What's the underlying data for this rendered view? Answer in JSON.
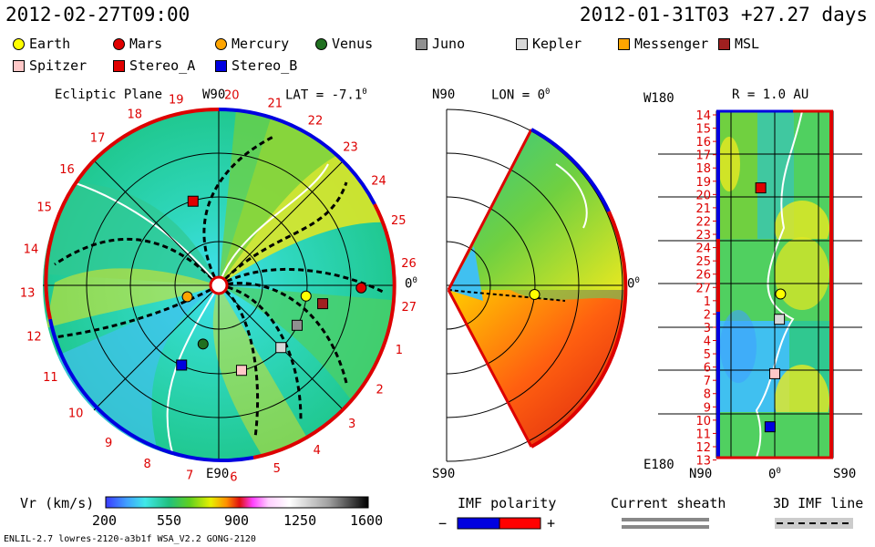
{
  "header": {
    "left_time": "2012-02-27T09:00",
    "right_time": "2012-01-31T03 +27.27 days"
  },
  "legend": [
    {
      "name": "Earth",
      "shape": "circle",
      "color": "#ffff00"
    },
    {
      "name": "Mars",
      "shape": "circle",
      "color": "#e00000"
    },
    {
      "name": "Mercury",
      "shape": "circle",
      "color": "#ffa500"
    },
    {
      "name": "Venus",
      "shape": "circle",
      "color": "#207020"
    },
    {
      "name": "Juno",
      "shape": "square",
      "color": "#909090"
    },
    {
      "name": "Kepler",
      "shape": "square",
      "color": "#d8d8d8"
    },
    {
      "name": "Messenger",
      "shape": "square",
      "color": "#ffa500"
    },
    {
      "name": "MSL",
      "shape": "square",
      "color": "#a02020"
    },
    {
      "name": "Spitzer",
      "shape": "square",
      "color": "#ffc8c8"
    },
    {
      "name": "Stereo_A",
      "shape": "square",
      "color": "#e00000"
    },
    {
      "name": "Stereo_B",
      "shape": "square",
      "color": "#0000e0"
    }
  ],
  "chart_data": [
    {
      "type": "heatmap",
      "title": "Ecliptic Plane",
      "subtitle": "LAT = -7.1",
      "degree_mark": "0",
      "top_label": "W90",
      "bottom_label": "E90",
      "right_label": "0",
      "carrington_ticks": [
        "20",
        "21",
        "22",
        "23",
        "24",
        "25",
        "26",
        "27",
        "1",
        "2",
        "3",
        "4",
        "5",
        "6",
        "7",
        "8",
        "9",
        "10",
        "11",
        "12",
        "13",
        "14",
        "15",
        "16",
        "17",
        "18",
        "19"
      ],
      "objects": [
        {
          "name": "Earth",
          "r_au": 1.0,
          "angle_deg": -7
        },
        {
          "name": "Mars",
          "r_au": 1.62,
          "angle_deg": -1
        },
        {
          "name": "Mercury",
          "r_au": 0.38,
          "angle_deg": -160
        },
        {
          "name": "Venus",
          "r_au": 0.69,
          "angle_deg": -105
        },
        {
          "name": "Juno",
          "r_au": 1.0,
          "angle_deg": -27
        },
        {
          "name": "Kepler",
          "r_au": 1.0,
          "angle_deg": -45
        },
        {
          "name": "MSL",
          "r_au": 1.2,
          "angle_deg": -10
        },
        {
          "name": "Spitzer",
          "r_au": 1.0,
          "angle_deg": -75
        },
        {
          "name": "Stereo_A",
          "r_au": 1.0,
          "angle_deg": 107
        },
        {
          "name": "Stereo_B",
          "r_au": 1.0,
          "angle_deg": -115
        }
      ]
    },
    {
      "type": "heatmap",
      "top_label": "N90",
      "subtitle": "LON = 0",
      "degree_mark": "0",
      "bottom_label": "S90",
      "right_label": "0"
    },
    {
      "type": "heatmap",
      "subtitle": "R = 1.0 AU",
      "top_left_label": "W180",
      "bottom_left_label": "E180",
      "x_ticks": [
        "N90",
        "0",
        "S90"
      ],
      "x_degree_mark": "0",
      "y_ticks": [
        "14",
        "15",
        "16",
        "17",
        "18",
        "19",
        "20",
        "21",
        "22",
        "23",
        "24",
        "25",
        "26",
        "27",
        "1",
        "2",
        "3",
        "4",
        "5",
        "6",
        "7",
        "8",
        "9",
        "10",
        "11",
        "12",
        "13"
      ],
      "objects": [
        {
          "name": "Stereo_A",
          "row": 5.5,
          "x_frac": 0.38
        },
        {
          "name": "Earth",
          "row": 13.5,
          "x_frac": 0.55
        },
        {
          "name": "Kepler",
          "row": 15.4,
          "x_frac": 0.54
        },
        {
          "name": "Spitzer",
          "row": 19.5,
          "x_frac": 0.5
        },
        {
          "name": "Stereo_B",
          "row": 23.5,
          "x_frac": 0.46
        }
      ]
    }
  ],
  "colorbar": {
    "label": "Vr (km/s)",
    "ticks": [
      "200",
      "550",
      "900",
      "1250",
      "1600"
    ]
  },
  "imf": {
    "label": "IMF polarity",
    "minus": "−",
    "plus": "+"
  },
  "current_sheath": {
    "label": "Current sheath"
  },
  "imf3d": {
    "label": "3D IMF line"
  },
  "footer": "ENLIL-2.7 lowres-2120-a3b1f WSA_V2.2 GONG-2120"
}
